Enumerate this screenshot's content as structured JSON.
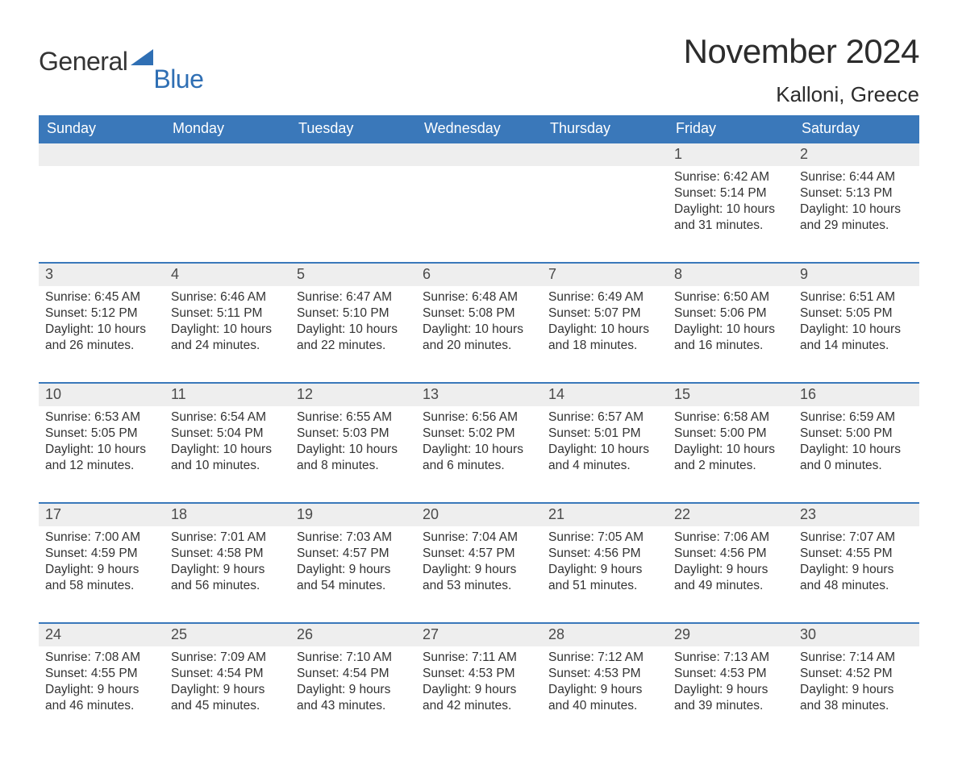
{
  "brand": {
    "word1": "General",
    "word2": "Blue",
    "flag_color": "#2f6fb4"
  },
  "title": "November 2024",
  "location": "Kalloni, Greece",
  "colors": {
    "header_bg": "#3a78ba",
    "header_fg": "#ffffff",
    "daynum_bg": "#eeeeee",
    "row_border": "#3a78ba",
    "text": "#333333",
    "background": "#ffffff"
  },
  "typography": {
    "title_fontsize": 42,
    "location_fontsize": 26,
    "header_fontsize": 18,
    "daynum_fontsize": 18,
    "body_fontsize": 15.5
  },
  "day_labels": [
    "Sunday",
    "Monday",
    "Tuesday",
    "Wednesday",
    "Thursday",
    "Friday",
    "Saturday"
  ],
  "weeks": [
    [
      null,
      null,
      null,
      null,
      null,
      {
        "n": "1",
        "sunrise": "6:42 AM",
        "sunset": "5:14 PM",
        "daylight": "10 hours and 31 minutes."
      },
      {
        "n": "2",
        "sunrise": "6:44 AM",
        "sunset": "5:13 PM",
        "daylight": "10 hours and 29 minutes."
      }
    ],
    [
      {
        "n": "3",
        "sunrise": "6:45 AM",
        "sunset": "5:12 PM",
        "daylight": "10 hours and 26 minutes."
      },
      {
        "n": "4",
        "sunrise": "6:46 AM",
        "sunset": "5:11 PM",
        "daylight": "10 hours and 24 minutes."
      },
      {
        "n": "5",
        "sunrise": "6:47 AM",
        "sunset": "5:10 PM",
        "daylight": "10 hours and 22 minutes."
      },
      {
        "n": "6",
        "sunrise": "6:48 AM",
        "sunset": "5:08 PM",
        "daylight": "10 hours and 20 minutes."
      },
      {
        "n": "7",
        "sunrise": "6:49 AM",
        "sunset": "5:07 PM",
        "daylight": "10 hours and 18 minutes."
      },
      {
        "n": "8",
        "sunrise": "6:50 AM",
        "sunset": "5:06 PM",
        "daylight": "10 hours and 16 minutes."
      },
      {
        "n": "9",
        "sunrise": "6:51 AM",
        "sunset": "5:05 PM",
        "daylight": "10 hours and 14 minutes."
      }
    ],
    [
      {
        "n": "10",
        "sunrise": "6:53 AM",
        "sunset": "5:05 PM",
        "daylight": "10 hours and 12 minutes."
      },
      {
        "n": "11",
        "sunrise": "6:54 AM",
        "sunset": "5:04 PM",
        "daylight": "10 hours and 10 minutes."
      },
      {
        "n": "12",
        "sunrise": "6:55 AM",
        "sunset": "5:03 PM",
        "daylight": "10 hours and 8 minutes."
      },
      {
        "n": "13",
        "sunrise": "6:56 AM",
        "sunset": "5:02 PM",
        "daylight": "10 hours and 6 minutes."
      },
      {
        "n": "14",
        "sunrise": "6:57 AM",
        "sunset": "5:01 PM",
        "daylight": "10 hours and 4 minutes."
      },
      {
        "n": "15",
        "sunrise": "6:58 AM",
        "sunset": "5:00 PM",
        "daylight": "10 hours and 2 minutes."
      },
      {
        "n": "16",
        "sunrise": "6:59 AM",
        "sunset": "5:00 PM",
        "daylight": "10 hours and 0 minutes."
      }
    ],
    [
      {
        "n": "17",
        "sunrise": "7:00 AM",
        "sunset": "4:59 PM",
        "daylight": "9 hours and 58 minutes."
      },
      {
        "n": "18",
        "sunrise": "7:01 AM",
        "sunset": "4:58 PM",
        "daylight": "9 hours and 56 minutes."
      },
      {
        "n": "19",
        "sunrise": "7:03 AM",
        "sunset": "4:57 PM",
        "daylight": "9 hours and 54 minutes."
      },
      {
        "n": "20",
        "sunrise": "7:04 AM",
        "sunset": "4:57 PM",
        "daylight": "9 hours and 53 minutes."
      },
      {
        "n": "21",
        "sunrise": "7:05 AM",
        "sunset": "4:56 PM",
        "daylight": "9 hours and 51 minutes."
      },
      {
        "n": "22",
        "sunrise": "7:06 AM",
        "sunset": "4:56 PM",
        "daylight": "9 hours and 49 minutes."
      },
      {
        "n": "23",
        "sunrise": "7:07 AM",
        "sunset": "4:55 PM",
        "daylight": "9 hours and 48 minutes."
      }
    ],
    [
      {
        "n": "24",
        "sunrise": "7:08 AM",
        "sunset": "4:55 PM",
        "daylight": "9 hours and 46 minutes."
      },
      {
        "n": "25",
        "sunrise": "7:09 AM",
        "sunset": "4:54 PM",
        "daylight": "9 hours and 45 minutes."
      },
      {
        "n": "26",
        "sunrise": "7:10 AM",
        "sunset": "4:54 PM",
        "daylight": "9 hours and 43 minutes."
      },
      {
        "n": "27",
        "sunrise": "7:11 AM",
        "sunset": "4:53 PM",
        "daylight": "9 hours and 42 minutes."
      },
      {
        "n": "28",
        "sunrise": "7:12 AM",
        "sunset": "4:53 PM",
        "daylight": "9 hours and 40 minutes."
      },
      {
        "n": "29",
        "sunrise": "7:13 AM",
        "sunset": "4:53 PM",
        "daylight": "9 hours and 39 minutes."
      },
      {
        "n": "30",
        "sunrise": "7:14 AM",
        "sunset": "4:52 PM",
        "daylight": "9 hours and 38 minutes."
      }
    ]
  ],
  "labels": {
    "sunrise": "Sunrise: ",
    "sunset": "Sunset: ",
    "daylight": "Daylight: "
  }
}
